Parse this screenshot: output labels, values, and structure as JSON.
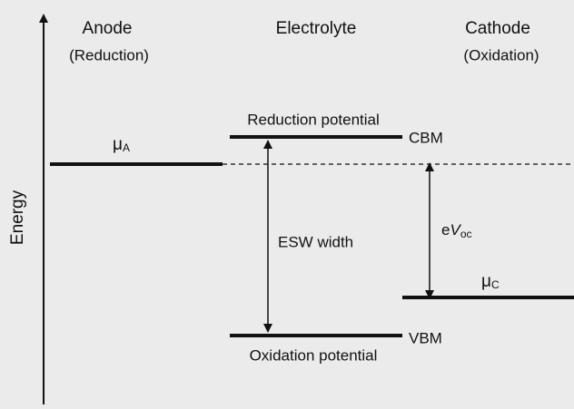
{
  "axis_label": "Energy",
  "columns": {
    "anode": {
      "title": "Anode",
      "subtitle": "(Reduction)"
    },
    "electrolyte": {
      "title": "Electrolyte"
    },
    "cathode": {
      "title": "Cathode",
      "subtitle": "(Oxidation)"
    }
  },
  "levels": {
    "anode": {
      "symbol": "μ",
      "subscript": "A"
    },
    "cbm": {
      "label": "Reduction potential",
      "tag": "CBM"
    },
    "vbm": {
      "label": "Oxidation potential",
      "tag": "VBM"
    },
    "cathode": {
      "symbol": "μ",
      "subscript": "C"
    }
  },
  "arrows": {
    "esw": {
      "label": "ESW width"
    },
    "voc": {
      "prefix": "e",
      "symbol": "V",
      "subscript": "oc"
    }
  }
}
